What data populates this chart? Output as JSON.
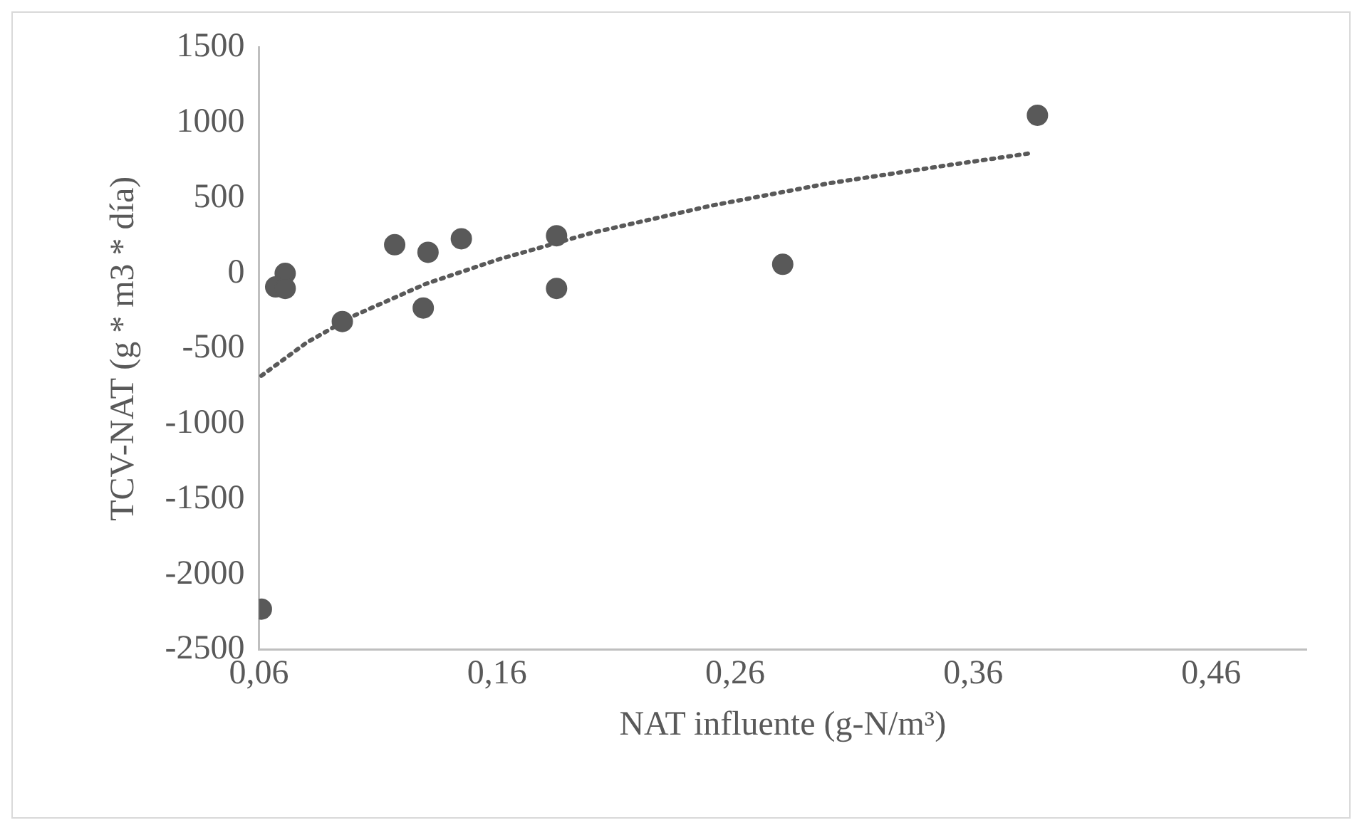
{
  "chart_data": {
    "type": "scatter",
    "xlabel": "NAT influente (g-N/m³)",
    "ylabel": "TCV-NAT (g * m3 * día)",
    "xlim": [
      0.06,
      0.5
    ],
    "xticks": [
      {
        "value": 0.06,
        "label": "0,06"
      },
      {
        "value": 0.16,
        "label": "0,16"
      },
      {
        "value": 0.26,
        "label": "0,26"
      },
      {
        "value": 0.36,
        "label": "0,36"
      },
      {
        "value": 0.46,
        "label": "0,46"
      }
    ],
    "ylim": [
      -2500,
      1500
    ],
    "yticks": [
      -2500,
      -2000,
      -1500,
      -1000,
      -500,
      0,
      500,
      1000,
      1500
    ],
    "series": [
      {
        "color": "#595959",
        "marker": "circle",
        "x": [
          0.071,
          0.067,
          0.071,
          0.095,
          0.117,
          0.131,
          0.129,
          0.145,
          0.185,
          0.185,
          0.28,
          0.387,
          0.061
        ],
        "values": [
          0,
          -90,
          -100,
          -320,
          190,
          140,
          -230,
          230,
          250,
          -100,
          60,
          1050,
          -2230
        ]
      },
      {
        "type": "line",
        "color": "#595959",
        "line_style": "dotted",
        "marker": "none",
        "x": [
          0.061,
          0.08,
          0.1,
          0.13,
          0.16,
          0.2,
          0.25,
          0.3,
          0.35,
          0.385
        ],
        "values": [
          -680,
          -460,
          -280,
          -70,
          90,
          270,
          450,
          600,
          720,
          800
        ]
      }
    ]
  }
}
